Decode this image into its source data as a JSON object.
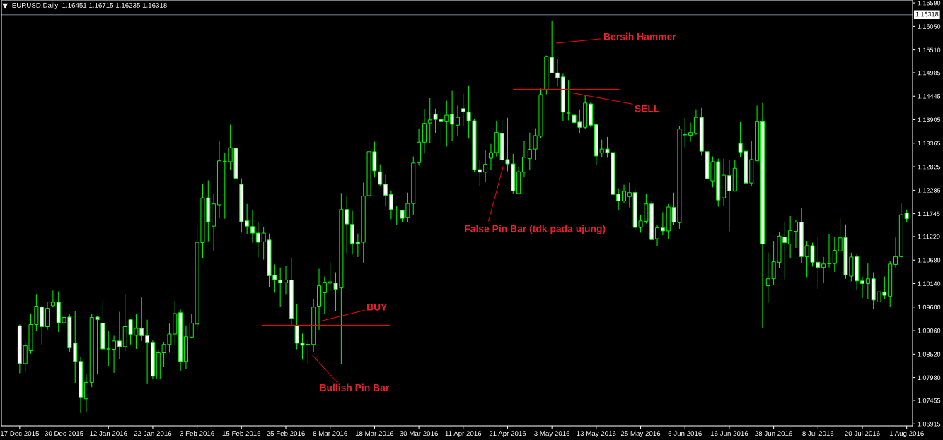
{
  "chart_data": {
    "type": "candlestick",
    "title": "EURUSD,Daily  1.16451 1.16715 1.16235 1.16318",
    "categories": [
      "17 Dec 2015",
      null,
      null,
      null,
      null,
      null,
      null,
      null,
      "30 Dec 2015",
      null,
      null,
      null,
      null,
      null,
      null,
      null,
      "12 Jan 2016",
      null,
      null,
      null,
      null,
      null,
      null,
      null,
      "22 Jan 2016",
      null,
      null,
      null,
      null,
      null,
      null,
      null,
      "3 Feb 2016",
      null,
      null,
      null,
      null,
      null,
      null,
      null,
      "15 Feb 2016",
      null,
      null,
      null,
      null,
      null,
      null,
      null,
      "25 Feb 2016",
      null,
      null,
      null,
      null,
      null,
      null,
      null,
      "8 Mar 2016",
      null,
      null,
      null,
      null,
      null,
      null,
      null,
      "18 Mar 2016",
      null,
      null,
      null,
      null,
      null,
      null,
      null,
      "30 Mar 2016",
      null,
      null,
      null,
      null,
      null,
      null,
      null,
      "11 Apr 2016",
      null,
      null,
      null,
      null,
      null,
      null,
      null,
      "21 Apr 2016",
      null,
      null,
      null,
      null,
      null,
      null,
      null,
      "3 May 2016",
      null,
      null,
      null,
      null,
      null,
      null,
      null,
      "13 May 2016",
      null,
      null,
      null,
      null,
      null,
      null,
      null,
      "25 May 2016",
      null,
      null,
      null,
      null,
      null,
      null,
      null,
      "6 Jun 2016",
      null,
      null,
      null,
      null,
      null,
      null,
      null,
      "16 Jun 2016",
      null,
      null,
      null,
      null,
      null,
      null,
      null,
      "28 Jun 2016",
      null,
      null,
      null,
      null,
      null,
      null,
      null,
      "8 Jul 2016",
      null,
      null,
      null,
      null,
      null,
      null,
      null,
      "20 Jul 2016",
      null,
      null,
      null,
      null,
      null,
      null,
      null,
      "1 Aug 2016"
    ],
    "ohlc": [
      [
        1.0917,
        1.092,
        1.0808,
        1.083
      ],
      [
        1.083,
        1.088,
        1.081,
        1.0871
      ],
      [
        1.086,
        1.0944,
        1.0853,
        1.092
      ],
      [
        1.092,
        1.099,
        1.0906,
        1.0962
      ],
      [
        1.096,
        1.0962,
        1.0874,
        1.0915
      ],
      [
        1.0915,
        1.0972,
        1.0908,
        1.0957
      ],
      [
        1.0963,
        1.0998,
        1.0959,
        1.0971
      ],
      [
        1.0971,
        1.0996,
        1.0903,
        1.0924
      ],
      [
        1.0924,
        1.0949,
        1.0906,
        1.0936
      ],
      [
        1.0937,
        1.0943,
        1.0856,
        1.0866
      ],
      [
        1.0877,
        1.0951,
        1.0786,
        1.0835
      ],
      [
        1.0835,
        1.0846,
        1.0716,
        1.0753
      ],
      [
        1.0749,
        1.0805,
        1.0718,
        1.0787
      ],
      [
        1.0787,
        1.0944,
        1.0776,
        1.0936
      ],
      [
        1.0937,
        1.094,
        1.0807,
        1.0931
      ],
      [
        1.0923,
        1.0975,
        1.0853,
        1.0864
      ],
      [
        1.0864,
        1.0906,
        1.0825,
        1.0864
      ],
      [
        1.0863,
        1.0894,
        1.0809,
        1.0882
      ],
      [
        1.0882,
        1.0949,
        1.084,
        1.0869
      ],
      [
        1.0869,
        1.099,
        1.0859,
        1.0915
      ],
      [
        1.0931,
        1.0933,
        1.0874,
        1.0897
      ],
      [
        1.0895,
        1.0944,
        1.0864,
        1.0911
      ],
      [
        1.0911,
        1.0982,
        1.0882,
        1.0894
      ],
      [
        1.0894,
        1.0931,
        1.0783,
        1.0879
      ],
      [
        1.0879,
        1.0883,
        1.0794,
        1.0801
      ],
      [
        1.0795,
        1.0863,
        1.0793,
        1.0855
      ],
      [
        1.0855,
        1.088,
        1.0823,
        1.0874
      ],
      [
        1.0874,
        1.0922,
        1.0855,
        1.0898
      ],
      [
        1.0898,
        1.0974,
        1.0874,
        1.0945
      ],
      [
        1.0947,
        1.0954,
        1.0813,
        1.0835
      ],
      [
        1.0835,
        1.0918,
        1.0818,
        1.0892
      ],
      [
        1.0891,
        1.0945,
        1.0889,
        1.0923
      ],
      [
        1.0921,
        1.115,
        1.0908,
        1.1109
      ],
      [
        1.1108,
        1.1243,
        1.1072,
        1.1211
      ],
      [
        1.1211,
        1.1251,
        1.1111,
        1.1156
      ],
      [
        1.1146,
        1.122,
        1.1089,
        1.1197
      ],
      [
        1.1195,
        1.1342,
        1.1165,
        1.1296
      ],
      [
        1.1295,
        1.1314,
        1.1163,
        1.1295
      ],
      [
        1.1294,
        1.1379,
        1.1275,
        1.1326
      ],
      [
        1.1325,
        1.1336,
        1.1217,
        1.1256
      ],
      [
        1.1242,
        1.1256,
        1.1131,
        1.1156
      ],
      [
        1.1158,
        1.1197,
        1.1128,
        1.1146
      ],
      [
        1.1145,
        1.1183,
        1.1108,
        1.113
      ],
      [
        1.113,
        1.1155,
        1.1074,
        1.1109
      ],
      [
        1.111,
        1.1144,
        1.1069,
        1.113
      ],
      [
        1.1114,
        1.1129,
        1.1006,
        1.1032
      ],
      [
        1.1033,
        1.1058,
        1.0993,
        1.1023
      ],
      [
        1.1022,
        1.1051,
        1.0961,
        1.1016
      ],
      [
        1.1016,
        1.1055,
        1.099,
        1.1022
      ],
      [
        1.1022,
        1.1074,
        1.0916,
        1.0934
      ],
      [
        1.0917,
        1.0967,
        1.0863,
        1.0877
      ],
      [
        1.0877,
        1.0899,
        1.0839,
        1.0872
      ],
      [
        1.0874,
        1.0886,
        1.0829,
        1.0874
      ],
      [
        1.0874,
        1.0978,
        1.0857,
        1.096
      ],
      [
        1.0962,
        1.1048,
        1.0908,
        1.1009
      ],
      [
        1.0993,
        1.103,
        1.0945,
        1.1017
      ],
      [
        1.1015,
        1.1063,
        1.0997,
        1.1018
      ],
      [
        1.1015,
        1.104,
        1.095,
        1.1001
      ],
      [
        1.1004,
        1.1222,
        1.0829,
        1.1184
      ],
      [
        1.1184,
        1.1214,
        1.1084,
        1.1151
      ],
      [
        1.115,
        1.1181,
        1.1081,
        1.1106
      ],
      [
        1.1109,
        1.1129,
        1.1075,
        1.1106
      ],
      [
        1.1109,
        1.1246,
        1.1062,
        1.1215
      ],
      [
        1.1216,
        1.1346,
        1.1208,
        1.1317
      ],
      [
        1.1317,
        1.134,
        1.1258,
        1.1273
      ],
      [
        1.1271,
        1.1288,
        1.1237,
        1.1242
      ],
      [
        1.1242,
        1.1264,
        1.1191,
        1.1217
      ],
      [
        1.1219,
        1.1228,
        1.1162,
        1.1184
      ],
      [
        1.1183,
        1.1192,
        1.1148,
        1.1183
      ],
      [
        1.1182,
        1.1184,
        1.1156,
        1.1164
      ],
      [
        1.1166,
        1.1223,
        1.1156,
        1.1198
      ],
      [
        1.1198,
        1.1306,
        1.1172,
        1.1291
      ],
      [
        1.1292,
        1.1369,
        1.1285,
        1.1339
      ],
      [
        1.1339,
        1.1415,
        1.1313,
        1.1382
      ],
      [
        1.1383,
        1.144,
        1.1337,
        1.139
      ],
      [
        1.1403,
        1.1416,
        1.136,
        1.1391
      ],
      [
        1.1391,
        1.1408,
        1.1337,
        1.1386
      ],
      [
        1.1386,
        1.1434,
        1.1329,
        1.1401
      ],
      [
        1.1403,
        1.1457,
        1.1341,
        1.138
      ],
      [
        1.1378,
        1.1423,
        1.1352,
        1.1396
      ],
      [
        1.1416,
        1.145,
        1.1375,
        1.1409
      ],
      [
        1.1408,
        1.1468,
        1.1347,
        1.1388
      ],
      [
        1.1388,
        1.1393,
        1.1271,
        1.1276
      ],
      [
        1.1276,
        1.1298,
        1.1237,
        1.127
      ],
      [
        1.127,
        1.1321,
        1.1248,
        1.1288
      ],
      [
        1.1302,
        1.1335,
        1.1276,
        1.1315
      ],
      [
        1.1315,
        1.1387,
        1.1306,
        1.1361
      ],
      [
        1.1359,
        1.139,
        1.1294,
        1.1298
      ],
      [
        1.1299,
        1.1395,
        1.1272,
        1.1289
      ],
      [
        1.1289,
        1.1312,
        1.1221,
        1.1227
      ],
      [
        1.1221,
        1.1282,
        1.1221,
        1.1271
      ],
      [
        1.127,
        1.1342,
        1.1258,
        1.1304
      ],
      [
        1.1301,
        1.1361,
        1.1276,
        1.1322
      ],
      [
        1.1323,
        1.1371,
        1.1298,
        1.1354
      ],
      [
        1.1353,
        1.1462,
        1.1349,
        1.1448
      ],
      [
        1.1459,
        1.1538,
        1.1449,
        1.1536
      ],
      [
        1.1534,
        1.1617,
        1.1497,
        1.1498
      ],
      [
        1.1498,
        1.1531,
        1.1467,
        1.1487
      ],
      [
        1.1489,
        1.1496,
        1.1388,
        1.1408
      ],
      [
        1.1406,
        1.1482,
        1.1389,
        1.1406
      ],
      [
        1.1401,
        1.1423,
        1.1378,
        1.1384
      ],
      [
        1.1385,
        1.1413,
        1.136,
        1.1373
      ],
      [
        1.1373,
        1.1448,
        1.137,
        1.1429
      ],
      [
        1.1427,
        1.1432,
        1.1373,
        1.1378
      ],
      [
        1.1379,
        1.1382,
        1.1286,
        1.1307
      ],
      [
        1.1314,
        1.1345,
        1.1305,
        1.1323
      ],
      [
        1.1323,
        1.1351,
        1.1303,
        1.1315
      ],
      [
        1.1315,
        1.1318,
        1.1217,
        1.1219
      ],
      [
        1.122,
        1.1233,
        1.1183,
        1.1204
      ],
      [
        1.1204,
        1.1241,
        1.12,
        1.1226
      ],
      [
        1.1214,
        1.1246,
        1.1189,
        1.1223
      ],
      [
        1.1223,
        1.1231,
        1.1136,
        1.1143
      ],
      [
        1.1143,
        1.1171,
        1.1131,
        1.1158
      ],
      [
        1.1157,
        1.122,
        1.1152,
        1.1197
      ],
      [
        1.1197,
        1.1204,
        1.1113,
        1.1115
      ],
      [
        1.1117,
        1.1149,
        1.11,
        1.1142
      ],
      [
        1.1142,
        1.1178,
        1.1125,
        1.1135
      ],
      [
        1.1135,
        1.1197,
        1.1116,
        1.119
      ],
      [
        1.1189,
        1.1223,
        1.1149,
        1.1155
      ],
      [
        1.1154,
        1.1376,
        1.114,
        1.1369
      ],
      [
        1.1356,
        1.1395,
        1.1327,
        1.1356
      ],
      [
        1.1355,
        1.1384,
        1.134,
        1.1361
      ],
      [
        1.1359,
        1.1413,
        1.1356,
        1.1396
      ],
      [
        1.1396,
        1.1418,
        1.1308,
        1.1318
      ],
      [
        1.1317,
        1.1325,
        1.1248,
        1.1255
      ],
      [
        1.125,
        1.1306,
        1.1235,
        1.1294
      ],
      [
        1.1294,
        1.1301,
        1.1191,
        1.1206
      ],
      [
        1.1211,
        1.1301,
        1.1193,
        1.1263
      ],
      [
        1.1262,
        1.1298,
        1.1134,
        1.1227
      ],
      [
        1.1227,
        1.1299,
        1.1225,
        1.1279
      ],
      [
        1.1336,
        1.1385,
        1.1304,
        1.1316
      ],
      [
        1.1318,
        1.1353,
        1.1243,
        1.1245
      ],
      [
        1.1245,
        1.1342,
        1.1239,
        1.1299
      ],
      [
        1.1296,
        1.1423,
        1.1296,
        1.1386
      ],
      [
        1.1386,
        1.1429,
        1.0911,
        1.1105
      ],
      [
        1.1009,
        1.1085,
        1.097,
        1.1025
      ],
      [
        1.1025,
        1.1112,
        1.1011,
        1.1064
      ],
      [
        1.1063,
        1.1132,
        1.1049,
        1.1123
      ],
      [
        1.1121,
        1.1156,
        1.1024,
        1.1108
      ],
      [
        1.1105,
        1.1169,
        1.1073,
        1.1136
      ],
      [
        1.1134,
        1.116,
        1.1096,
        1.1155
      ],
      [
        1.1155,
        1.1188,
        1.1062,
        1.1076
      ],
      [
        1.1076,
        1.1112,
        1.1029,
        1.1101
      ],
      [
        1.1101,
        1.1108,
        1.1053,
        1.1063
      ],
      [
        1.1063,
        1.1121,
        1.1002,
        1.1051
      ],
      [
        1.1051,
        1.1075,
        1.1016,
        1.1059
      ],
      [
        1.106,
        1.1127,
        1.1051,
        1.106
      ],
      [
        1.106,
        1.1121,
        1.1041,
        1.109
      ],
      [
        1.1089,
        1.1165,
        1.1086,
        1.1119
      ],
      [
        1.112,
        1.115,
        1.1025,
        1.1034
      ],
      [
        1.1031,
        1.1085,
        1.1019,
        1.1075
      ],
      [
        1.1076,
        1.1082,
        1.0999,
        1.102
      ],
      [
        1.102,
        1.103,
        1.0981,
        1.1014
      ],
      [
        1.1014,
        1.106,
        1.0978,
        1.1025
      ],
      [
        1.1025,
        1.104,
        1.0955,
        1.0976
      ],
      [
        1.0972,
        1.1001,
        1.095,
        1.0995
      ],
      [
        1.0994,
        1.103,
        1.0979,
        1.0987
      ],
      [
        1.0985,
        1.1066,
        1.096,
        1.1059
      ],
      [
        1.1058,
        1.112,
        1.1051,
        1.1076
      ],
      [
        1.1076,
        1.1198,
        1.1072,
        1.1172
      ],
      [
        1.1176,
        1.1184,
        1.1155,
        1.1163
      ]
    ],
    "color": "#00ff00",
    "ylim": [
      1.0687,
      1.1664
    ],
    "yticks": [
      1.06915,
      1.07455,
      {
        "value": 1.0798,
        "label": "1.07980"
      },
      {
        "value": 1.0852,
        "label": "1.08520"
      },
      {
        "value": 1.0906,
        "label": "1.09060"
      },
      {
        "value": 1.096,
        "label": "1.09600"
      },
      {
        "value": 1.1014,
        "label": "1.10140"
      },
      {
        "value": 1.1068,
        "label": "1.10680"
      },
      {
        "value": 1.1122,
        "label": "1.11220"
      },
      1.11745,
      1.12285,
      1.12825,
      1.13365,
      1.13905,
      1.14445,
      1.14985,
      {
        "value": 1.1551,
        "label": "1.15510"
      },
      {
        "value": 1.1605,
        "label": "1.16050"
      },
      {
        "value": 1.1659,
        "label": "1.16590"
      }
    ],
    "ref_lines": [
      {
        "axis": "y",
        "value": 1.0918,
        "label": "BUY",
        "color": "#ff0000"
      },
      {
        "axis": "y",
        "value": 1.146,
        "label": "SELL",
        "color": "#ff0000"
      },
      {
        "axis": "y",
        "value": 1.16318,
        "label": "1.16318",
        "color": "#778899"
      }
    ],
    "annotations": [
      "Bersih Hammer",
      "False Pin Bar (tdk pada ujung)",
      "Bullish Pin Bar"
    ]
  }
}
